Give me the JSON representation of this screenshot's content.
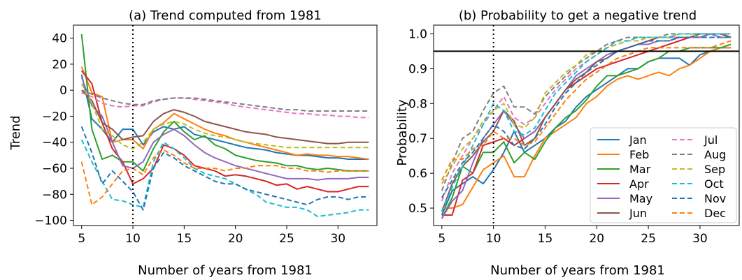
{
  "colors": {
    "Jan": "#1f77b4",
    "Feb": "#ff7f0e",
    "Mar": "#2ca02c",
    "Apr": "#d62728",
    "May": "#9467bd",
    "Jun": "#8c564b",
    "Jul": "#e377c2",
    "Aug": "#7f7f7f",
    "Sep": "#bcbd22",
    "Oct": "#17becf",
    "Nov": "#1f77b4",
    "Dec": "#ff7f0e"
  },
  "chart_data": [
    {
      "type": "line",
      "title": "(a) Trend computed from 1981",
      "xlabel": "Number of years from 1981",
      "ylabel": "Trend",
      "xlim": [
        4.2,
        33.8
      ],
      "ylim": [
        -104,
        50
      ],
      "xticks": [
        5,
        10,
        15,
        20,
        25,
        30
      ],
      "yticks": [
        40,
        20,
        0,
        -20,
        -40,
        -60,
        -80,
        -100
      ],
      "ytick_labels": [
        "40",
        "20",
        "0",
        "−20",
        "−40",
        "−60",
        "−80",
        "−100"
      ],
      "vline": 10,
      "x": [
        5,
        6,
        7,
        8,
        9,
        10,
        11,
        12,
        13,
        14,
        15,
        16,
        17,
        18,
        19,
        20,
        21,
        22,
        23,
        24,
        25,
        26,
        27,
        28,
        29,
        30,
        31,
        32,
        33
      ],
      "series": [
        {
          "name": "Jan",
          "dash": false,
          "values": [
            12,
            -22,
            -30,
            -40,
            -30,
            -30,
            -42,
            -32,
            -28,
            -30,
            -28,
            -34,
            -36,
            -38,
            -40,
            -42,
            -44,
            -45,
            -46,
            -48,
            -49,
            -50,
            -50,
            -51,
            -52,
            -52,
            -53,
            -53,
            -53
          ]
        },
        {
          "name": "Feb",
          "dash": false,
          "values": [
            18,
            -2,
            -5,
            -40,
            -38,
            -38,
            -45,
            -30,
            -25,
            -18,
            -22,
            -26,
            -30,
            -33,
            -35,
            -38,
            -40,
            -42,
            -44,
            -46,
            -48,
            -50,
            -49,
            -50,
            -50,
            -51,
            -51,
            -52,
            -53
          ]
        },
        {
          "name": "Mar",
          "dash": false,
          "values": [
            43,
            -30,
            -53,
            -50,
            -55,
            -55,
            -62,
            -45,
            -32,
            -24,
            -32,
            -38,
            -35,
            -42,
            -45,
            -50,
            -52,
            -54,
            -55,
            -56,
            -58,
            -58,
            -60,
            -61,
            -60,
            -61,
            -62,
            -62,
            -62
          ]
        },
        {
          "name": "Apr",
          "dash": false,
          "values": [
            15,
            5,
            -25,
            -45,
            -55,
            -72,
            -68,
            -60,
            -42,
            -45,
            -50,
            -58,
            -60,
            -62,
            -66,
            -65,
            -66,
            -68,
            -70,
            -73,
            -72,
            -76,
            -74,
            -76,
            -78,
            -78,
            -76,
            -74,
            -74
          ]
        },
        {
          "name": "May",
          "dash": false,
          "values": [
            10,
            -12,
            -20,
            -40,
            -58,
            -60,
            -55,
            -40,
            -34,
            -30,
            -35,
            -42,
            -48,
            -52,
            -55,
            -58,
            -60,
            -62,
            -64,
            -66,
            -68,
            -68,
            -68,
            -69,
            -68,
            -68,
            -68,
            -67,
            -67
          ]
        },
        {
          "name": "Jun",
          "dash": false,
          "values": [
            0,
            -8,
            -25,
            -30,
            -38,
            -36,
            -35,
            -24,
            -18,
            -15,
            -17,
            -20,
            -24,
            -26,
            -28,
            -30,
            -32,
            -33,
            -34,
            -36,
            -37,
            -38,
            -39,
            -40,
            -41,
            -41,
            -40,
            -40,
            -40
          ]
        },
        {
          "name": "Jul",
          "dash": true,
          "values": [
            -2,
            -5,
            -10,
            -12,
            -13,
            -12,
            -12,
            -9,
            -7,
            -6,
            -6,
            -7,
            -8,
            -9,
            -10,
            -12,
            -13,
            -14,
            -15,
            -16,
            -17,
            -18,
            -18,
            -19,
            -19,
            -20,
            -20,
            -21,
            -21
          ]
        },
        {
          "name": "Aug",
          "dash": true,
          "values": [
            0,
            -3,
            -6,
            -8,
            -10,
            -11,
            -11,
            -8,
            -7,
            -6,
            -6,
            -6,
            -7,
            -8,
            -9,
            -10,
            -11,
            -12,
            -13,
            -14,
            -15,
            -15,
            -16,
            -16,
            -16,
            -16,
            -16,
            -16,
            -16
          ]
        },
        {
          "name": "Sep",
          "dash": true,
          "values": [
            5,
            -10,
            -30,
            -35,
            -42,
            -45,
            -40,
            -30,
            -26,
            -24,
            -26,
            -30,
            -33,
            -35,
            -36,
            -38,
            -40,
            -41,
            -42,
            -43,
            -44,
            -44,
            -44,
            -44,
            -44,
            -44,
            -44,
            -44,
            -44
          ]
        },
        {
          "name": "Oct",
          "dash": true,
          "values": [
            -38,
            -55,
            -70,
            -84,
            -85,
            -88,
            -90,
            -55,
            -40,
            -45,
            -52,
            -60,
            -64,
            -66,
            -68,
            -72,
            -76,
            -80,
            -86,
            -88,
            -90,
            -90,
            -92,
            -97,
            -96,
            -95,
            -94,
            -92,
            -92
          ]
        },
        {
          "name": "Nov",
          "dash": true,
          "values": [
            -28,
            -48,
            -72,
            -62,
            -70,
            -78,
            -92,
            -60,
            -48,
            -52,
            -58,
            -62,
            -66,
            -70,
            -72,
            -72,
            -76,
            -78,
            -80,
            -82,
            -84,
            -86,
            -88,
            -84,
            -82,
            -82,
            -84,
            -82,
            -82
          ]
        },
        {
          "name": "Dec",
          "dash": true,
          "values": [
            -55,
            -88,
            -82,
            -72,
            -62,
            -60,
            -65,
            -52,
            -46,
            -50,
            -56,
            -60,
            -60,
            -60,
            -62,
            -60,
            -60,
            -58,
            -58,
            -58,
            -60,
            -60,
            -62,
            -62,
            -63,
            -62,
            -62,
            -62,
            -62
          ]
        }
      ]
    },
    {
      "type": "line",
      "title": "(b) Probability to get a negative trend",
      "xlabel": "Number of years from 1981",
      "ylabel": "Probability",
      "xlim": [
        4.2,
        33.8
      ],
      "ylim": [
        0.45,
        1.025
      ],
      "xticks": [
        5,
        10,
        15,
        20,
        25,
        30
      ],
      "yticks": [
        0.5,
        0.6,
        0.7,
        0.8,
        0.9,
        1.0
      ],
      "ytick_labels": [
        "0.5",
        "0.6",
        "0.7",
        "0.8",
        "0.9",
        "1.0"
      ],
      "vline": 10,
      "hline": 0.95,
      "legend_position": "bottom-right",
      "x": [
        5,
        6,
        7,
        8,
        9,
        10,
        11,
        12,
        13,
        14,
        15,
        16,
        17,
        18,
        19,
        20,
        21,
        22,
        23,
        24,
        25,
        26,
        27,
        28,
        29,
        30,
        31,
        32,
        33
      ],
      "series": [
        {
          "name": "Jan",
          "dash": false,
          "values": [
            0.48,
            0.55,
            0.57,
            0.59,
            0.57,
            0.61,
            0.66,
            0.72,
            0.66,
            0.68,
            0.7,
            0.73,
            0.75,
            0.79,
            0.82,
            0.84,
            0.86,
            0.88,
            0.9,
            0.9,
            0.92,
            0.93,
            0.93,
            0.93,
            0.91,
            0.94,
            0.95,
            0.96,
            0.96
          ]
        },
        {
          "name": "Feb",
          "dash": false,
          "values": [
            0.5,
            0.5,
            0.51,
            0.56,
            0.61,
            0.63,
            0.65,
            0.59,
            0.59,
            0.65,
            0.7,
            0.72,
            0.74,
            0.76,
            0.8,
            0.82,
            0.85,
            0.87,
            0.88,
            0.87,
            0.88,
            0.89,
            0.88,
            0.9,
            0.91,
            0.93,
            0.95,
            0.96,
            0.96
          ]
        },
        {
          "name": "Mar",
          "dash": false,
          "values": [
            0.47,
            0.53,
            0.62,
            0.6,
            0.66,
            0.66,
            0.69,
            0.63,
            0.66,
            0.64,
            0.69,
            0.73,
            0.76,
            0.78,
            0.81,
            0.85,
            0.88,
            0.88,
            0.89,
            0.9,
            0.92,
            0.93,
            0.95,
            0.95,
            0.96,
            0.96,
            0.96,
            0.96,
            0.97
          ]
        },
        {
          "name": "Apr",
          "dash": false,
          "values": [
            0.48,
            0.48,
            0.58,
            0.6,
            0.68,
            0.69,
            0.7,
            0.68,
            0.7,
            0.72,
            0.76,
            0.8,
            0.84,
            0.86,
            0.88,
            0.9,
            0.91,
            0.92,
            0.93,
            0.94,
            0.95,
            0.96,
            0.97,
            0.98,
            0.99,
            0.99,
            1.0,
            1.0,
            0.99
          ]
        },
        {
          "name": "May",
          "dash": false,
          "values": [
            0.47,
            0.52,
            0.55,
            0.63,
            0.7,
            0.74,
            0.78,
            0.74,
            0.7,
            0.72,
            0.76,
            0.8,
            0.84,
            0.88,
            0.9,
            0.92,
            0.94,
            0.95,
            0.96,
            0.97,
            0.97,
            0.98,
            0.98,
            0.99,
            0.99,
            0.99,
            1.0,
            0.99,
            0.99
          ]
        },
        {
          "name": "Jun",
          "dash": false,
          "values": [
            0.49,
            0.57,
            0.62,
            0.65,
            0.69,
            0.72,
            0.78,
            0.75,
            0.68,
            0.7,
            0.76,
            0.8,
            0.84,
            0.87,
            0.89,
            0.92,
            0.93,
            0.95,
            0.96,
            0.97,
            0.98,
            0.99,
            0.99,
            0.99,
            0.99,
            1.0,
            1.0,
            1.0,
            0.99
          ]
        },
        {
          "name": "Jul",
          "dash": true,
          "values": [
            0.52,
            0.6,
            0.65,
            0.7,
            0.74,
            0.78,
            0.82,
            0.76,
            0.74,
            0.76,
            0.8,
            0.84,
            0.87,
            0.9,
            0.92,
            0.94,
            0.96,
            0.97,
            0.98,
            0.98,
            0.99,
            0.99,
            0.99,
            0.99,
            0.99,
            0.99,
            0.99,
            0.99,
            0.99
          ]
        },
        {
          "name": "Aug",
          "dash": true,
          "values": [
            0.55,
            0.63,
            0.7,
            0.72,
            0.78,
            0.83,
            0.85,
            0.79,
            0.79,
            0.77,
            0.82,
            0.85,
            0.88,
            0.91,
            0.93,
            0.95,
            0.97,
            0.98,
            0.99,
            0.99,
            0.99,
            0.99,
            1.0,
            1.0,
            1.0,
            1.0,
            1.0,
            1.0,
            1.0
          ]
        },
        {
          "name": "Sep",
          "dash": true,
          "values": [
            0.57,
            0.62,
            0.67,
            0.7,
            0.75,
            0.78,
            0.8,
            0.74,
            0.73,
            0.76,
            0.83,
            0.86,
            0.89,
            0.91,
            0.94,
            0.95,
            0.96,
            0.97,
            0.98,
            0.98,
            0.99,
            0.99,
            0.99,
            1.0,
            1.0,
            0.99,
            0.99,
            0.99,
            0.99
          ]
        },
        {
          "name": "Oct",
          "dash": true,
          "values": [
            0.49,
            0.56,
            0.62,
            0.68,
            0.74,
            0.8,
            0.78,
            0.72,
            0.71,
            0.73,
            0.78,
            0.83,
            0.86,
            0.89,
            0.92,
            0.94,
            0.96,
            0.98,
            0.98,
            0.99,
            0.99,
            0.99,
            0.99,
            1.0,
            1.0,
            1.0,
            1.0,
            1.0,
            1.0
          ]
        },
        {
          "name": "Nov",
          "dash": true,
          "values": [
            0.53,
            0.58,
            0.63,
            0.66,
            0.7,
            0.74,
            0.72,
            0.68,
            0.67,
            0.7,
            0.74,
            0.79,
            0.83,
            0.86,
            0.89,
            0.91,
            0.93,
            0.95,
            0.96,
            0.97,
            0.98,
            0.98,
            0.98,
            0.99,
            0.99,
            0.99,
            0.99,
            0.99,
            0.99
          ]
        },
        {
          "name": "Dec",
          "dash": true,
          "values": [
            0.58,
            0.64,
            0.64,
            0.67,
            0.68,
            0.72,
            0.7,
            0.7,
            0.68,
            0.69,
            0.73,
            0.77,
            0.81,
            0.84,
            0.87,
            0.89,
            0.91,
            0.93,
            0.94,
            0.95,
            0.96,
            0.96,
            0.96,
            0.96,
            0.96,
            0.96,
            0.96,
            0.97,
            0.98
          ]
        }
      ]
    }
  ]
}
